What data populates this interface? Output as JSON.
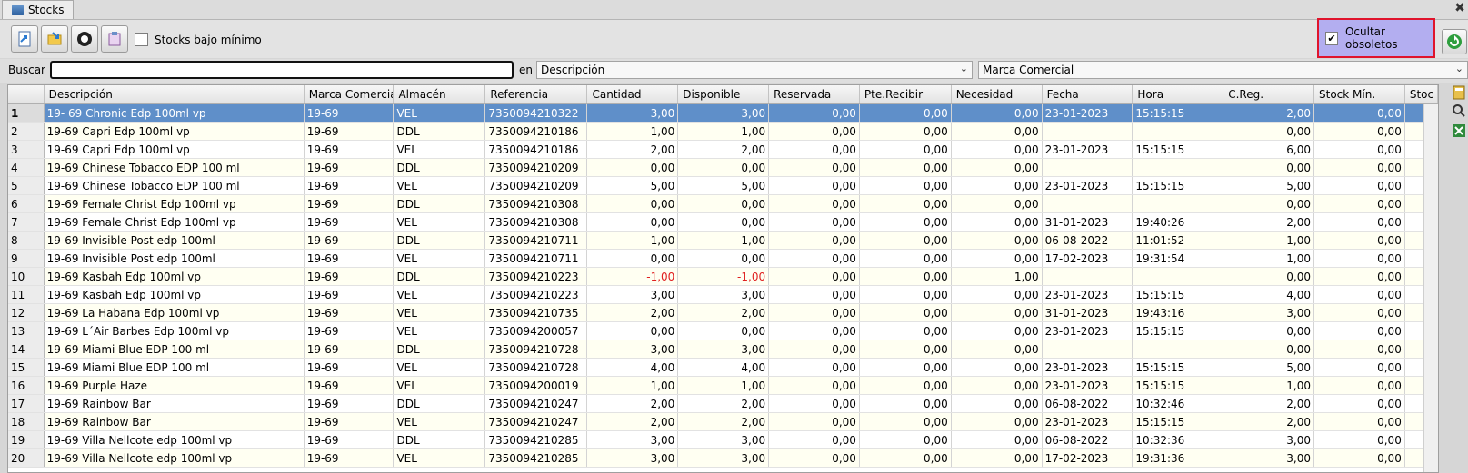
{
  "tab": {
    "label": "Stocks"
  },
  "toolbar": {
    "buttons": [
      {
        "name": "export-button",
        "icon": "document-arrow-icon"
      },
      {
        "name": "import-button",
        "icon": "folder-arrow-icon"
      },
      {
        "name": "settings-button",
        "icon": "gear-wheel-icon"
      },
      {
        "name": "report-button",
        "icon": "clipboard-icon"
      }
    ],
    "stocks_bajo_minimo": {
      "label": "Stocks bajo mínimo",
      "checked": false
    },
    "ocultar_obsoletos": {
      "label": "Ocultar obsoletos",
      "checked": true
    }
  },
  "search": {
    "label": "Buscar",
    "value": "",
    "in_label": "en",
    "field_select": "Descripción",
    "second_select": "Marca Comercial"
  },
  "table": {
    "columns": [
      "Descripción",
      "Marca Comercial",
      "Almacén",
      "Referencia",
      "Cantidad",
      "Disponible",
      "Reservada",
      "Pte.Recibir",
      "Necesidad",
      "Fecha",
      "Hora",
      "C.Reg.",
      "Stock Mín.",
      "Stoc"
    ],
    "rows": [
      [
        "1",
        "19- 69 Chronic Edp 100ml vp",
        "19-69",
        "VEL",
        "7350094210322",
        "3,00",
        "3,00",
        "0,00",
        "0,00",
        "0,00",
        "23-01-2023",
        "15:15:15",
        "2,00",
        "0,00"
      ],
      [
        "2",
        "19-69 Capri Edp 100ml vp",
        "19-69",
        "DDL",
        "7350094210186",
        "1,00",
        "1,00",
        "0,00",
        "0,00",
        "0,00",
        "",
        "",
        "0,00",
        "0,00"
      ],
      [
        "3",
        "19-69 Capri Edp 100ml vp",
        "19-69",
        "VEL",
        "7350094210186",
        "2,00",
        "2,00",
        "0,00",
        "0,00",
        "0,00",
        "23-01-2023",
        "15:15:15",
        "6,00",
        "0,00"
      ],
      [
        "4",
        "19-69 Chinese Tobacco EDP 100 ml",
        "19-69",
        "DDL",
        "7350094210209",
        "0,00",
        "0,00",
        "0,00",
        "0,00",
        "0,00",
        "",
        "",
        "0,00",
        "0,00"
      ],
      [
        "5",
        "19-69 Chinese Tobacco EDP 100 ml",
        "19-69",
        "VEL",
        "7350094210209",
        "5,00",
        "5,00",
        "0,00",
        "0,00",
        "0,00",
        "23-01-2023",
        "15:15:15",
        "5,00",
        "0,00"
      ],
      [
        "6",
        "19-69 Female Christ Edp 100ml vp",
        "19-69",
        "DDL",
        "7350094210308",
        "0,00",
        "0,00",
        "0,00",
        "0,00",
        "0,00",
        "",
        "",
        "0,00",
        "0,00"
      ],
      [
        "7",
        "19-69 Female Christ Edp 100ml vp",
        "19-69",
        "VEL",
        "7350094210308",
        "0,00",
        "0,00",
        "0,00",
        "0,00",
        "0,00",
        "31-01-2023",
        "19:40:26",
        "2,00",
        "0,00"
      ],
      [
        "8",
        "19-69 Invisible Post edp 100ml",
        "19-69",
        "DDL",
        "7350094210711",
        "1,00",
        "1,00",
        "0,00",
        "0,00",
        "0,00",
        "06-08-2022",
        "11:01:52",
        "1,00",
        "0,00"
      ],
      [
        "9",
        "19-69 Invisible Post edp 100ml",
        "19-69",
        "VEL",
        "7350094210711",
        "0,00",
        "0,00",
        "0,00",
        "0,00",
        "0,00",
        "17-02-2023",
        "19:31:54",
        "1,00",
        "0,00"
      ],
      [
        "10",
        "19-69 Kasbah Edp 100ml vp",
        "19-69",
        "DDL",
        "7350094210223",
        "-1,00",
        "-1,00",
        "0,00",
        "0,00",
        "1,00",
        "",
        "",
        "0,00",
        "0,00"
      ],
      [
        "11",
        "19-69 Kasbah Edp 100ml vp",
        "19-69",
        "VEL",
        "7350094210223",
        "3,00",
        "3,00",
        "0,00",
        "0,00",
        "0,00",
        "23-01-2023",
        "15:15:15",
        "4,00",
        "0,00"
      ],
      [
        "12",
        "19-69 La Habana Edp 100ml vp",
        "19-69",
        "VEL",
        "7350094210735",
        "2,00",
        "2,00",
        "0,00",
        "0,00",
        "0,00",
        "31-01-2023",
        "19:43:16",
        "3,00",
        "0,00"
      ],
      [
        "13",
        "19-69 L´Air Barbes Edp 100ml vp",
        "19-69",
        "VEL",
        "7350094200057",
        "0,00",
        "0,00",
        "0,00",
        "0,00",
        "0,00",
        "23-01-2023",
        "15:15:15",
        "0,00",
        "0,00"
      ],
      [
        "14",
        "19-69 Miami Blue EDP 100 ml",
        "19-69",
        "DDL",
        "7350094210728",
        "3,00",
        "3,00",
        "0,00",
        "0,00",
        "0,00",
        "",
        "",
        "0,00",
        "0,00"
      ],
      [
        "15",
        "19-69 Miami Blue EDP 100 ml",
        "19-69",
        "VEL",
        "7350094210728",
        "4,00",
        "4,00",
        "0,00",
        "0,00",
        "0,00",
        "23-01-2023",
        "15:15:15",
        "5,00",
        "0,00"
      ],
      [
        "16",
        "19-69 Purple Haze",
        "19-69",
        "VEL",
        "7350094200019",
        "1,00",
        "1,00",
        "0,00",
        "0,00",
        "0,00",
        "23-01-2023",
        "15:15:15",
        "1,00",
        "0,00"
      ],
      [
        "17",
        "19-69 Rainbow Bar",
        "19-69",
        "DDL",
        "7350094210247",
        "2,00",
        "2,00",
        "0,00",
        "0,00",
        "0,00",
        "06-08-2022",
        "10:32:46",
        "2,00",
        "0,00"
      ],
      [
        "18",
        "19-69 Rainbow Bar",
        "19-69",
        "VEL",
        "7350094210247",
        "2,00",
        "2,00",
        "0,00",
        "0,00",
        "0,00",
        "23-01-2023",
        "15:15:15",
        "2,00",
        "0,00"
      ],
      [
        "19",
        "19-69 Villa Nellcote edp 100ml vp",
        "19-69",
        "DDL",
        "7350094210285",
        "3,00",
        "3,00",
        "0,00",
        "0,00",
        "0,00",
        "06-08-2022",
        "10:32:36",
        "3,00",
        "0,00"
      ],
      [
        "20",
        "19-69 Villa Nellcote edp 100ml vp",
        "19-69",
        "VEL",
        "7350094210285",
        "3,00",
        "3,00",
        "0,00",
        "0,00",
        "0,00",
        "17-02-2023",
        "19:31:36",
        "3,00",
        "0,00"
      ]
    ],
    "selected_row": 1
  },
  "side_buttons": [
    {
      "name": "grid-config-button",
      "icon": "calculator-icon"
    },
    {
      "name": "find-button",
      "icon": "magnifier-icon"
    },
    {
      "name": "excel-export-button",
      "icon": "excel-icon"
    }
  ],
  "colors": {
    "selection": "#5f8fc9",
    "highlight_box": "#b3aef0",
    "highlight_border": "#e0142c",
    "negative": "#e02020"
  }
}
